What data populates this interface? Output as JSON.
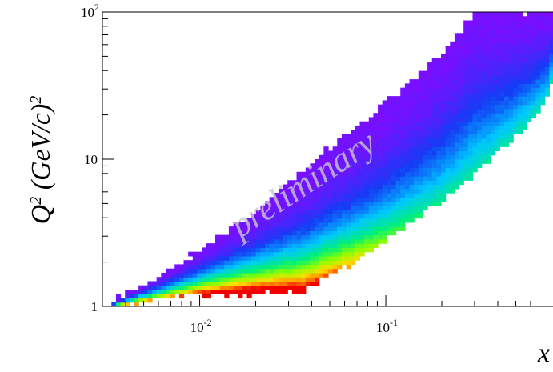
{
  "chart_data": {
    "type": "heatmap",
    "title": "",
    "xlabel": "x",
    "ylabel_parts": [
      "Q",
      "2",
      " (GeV/c)",
      "2"
    ],
    "x_scale": "log",
    "y_scale": "log",
    "xlim": [
      0.003,
      0.8
    ],
    "ylim": [
      1,
      100
    ],
    "x_ticks": [
      {
        "value": 0.01,
        "base": "10",
        "exp": "-2"
      },
      {
        "value": 0.1,
        "base": "10",
        "exp": "-1"
      }
    ],
    "y_ticks": [
      {
        "value": 1,
        "label": "1"
      },
      {
        "value": 10,
        "label": "10"
      },
      {
        "value": 100,
        "base": "10",
        "exp": "2"
      }
    ],
    "annotation": "preliminary",
    "grid": false,
    "legend": "none",
    "colormap": "rainbow (violet = low, red = high)",
    "density_peak": {
      "x": 0.02,
      "Q2": 1.1
    },
    "populated_region": {
      "lower_edge": [
        [
          0.0034,
          1
        ],
        [
          0.005,
          1.08
        ],
        [
          0.01,
          1.2
        ],
        [
          0.02,
          1.22
        ],
        [
          0.035,
          1.25
        ],
        [
          0.05,
          1.6
        ],
        [
          0.1,
          2.8
        ],
        [
          0.2,
          5.2
        ],
        [
          0.4,
          11
        ],
        [
          0.6,
          18
        ],
        [
          0.75,
          26
        ],
        [
          0.8,
          40
        ]
      ],
      "upper_edge": [
        [
          0.003,
          1
        ],
        [
          0.0045,
          1.3
        ],
        [
          0.006,
          1.6
        ],
        [
          0.01,
          2.4
        ],
        [
          0.02,
          4.4
        ],
        [
          0.05,
          12
        ],
        [
          0.1,
          24
        ],
        [
          0.2,
          52
        ],
        [
          0.3,
          100
        ],
        [
          0.8,
          100
        ]
      ]
    }
  }
}
